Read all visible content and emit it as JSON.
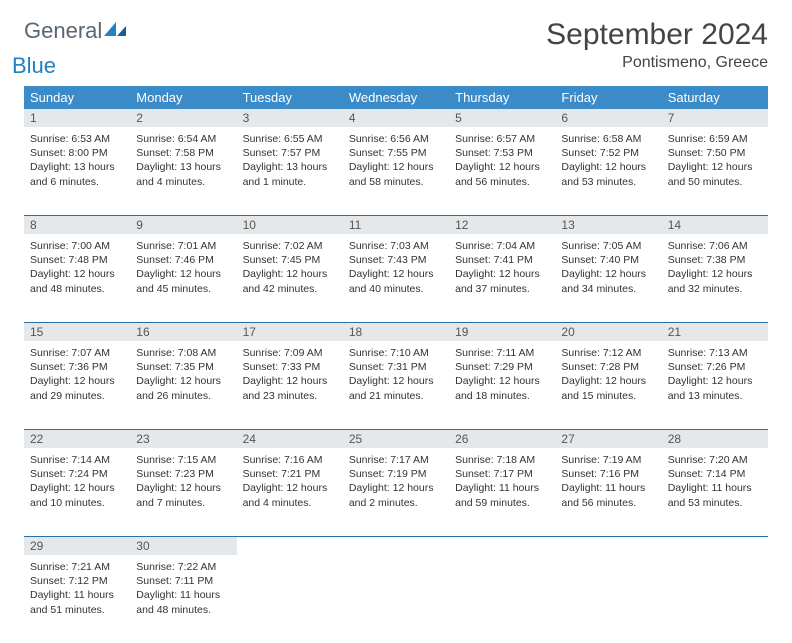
{
  "logo": {
    "word1": "General",
    "word2": "Blue",
    "text_color1": "#5a6670",
    "text_color2": "#2380c3"
  },
  "title": "September 2024",
  "location": "Pontismeno, Greece",
  "header_bg": "#3b8bc9",
  "daynum_bg": "#e5e8ea",
  "row_border_color": "#2a6fa8",
  "day_headers": [
    "Sunday",
    "Monday",
    "Tuesday",
    "Wednesday",
    "Thursday",
    "Friday",
    "Saturday"
  ],
  "labels": {
    "sunrise": "Sunrise:",
    "sunset": "Sunset:",
    "daylight": "Daylight:"
  },
  "weeks": [
    [
      {
        "n": "1",
        "sr": "6:53 AM",
        "ss": "8:00 PM",
        "dl": "13 hours and 6 minutes."
      },
      {
        "n": "2",
        "sr": "6:54 AM",
        "ss": "7:58 PM",
        "dl": "13 hours and 4 minutes."
      },
      {
        "n": "3",
        "sr": "6:55 AM",
        "ss": "7:57 PM",
        "dl": "13 hours and 1 minute."
      },
      {
        "n": "4",
        "sr": "6:56 AM",
        "ss": "7:55 PM",
        "dl": "12 hours and 58 minutes."
      },
      {
        "n": "5",
        "sr": "6:57 AM",
        "ss": "7:53 PM",
        "dl": "12 hours and 56 minutes."
      },
      {
        "n": "6",
        "sr": "6:58 AM",
        "ss": "7:52 PM",
        "dl": "12 hours and 53 minutes."
      },
      {
        "n": "7",
        "sr": "6:59 AM",
        "ss": "7:50 PM",
        "dl": "12 hours and 50 minutes."
      }
    ],
    [
      {
        "n": "8",
        "sr": "7:00 AM",
        "ss": "7:48 PM",
        "dl": "12 hours and 48 minutes."
      },
      {
        "n": "9",
        "sr": "7:01 AM",
        "ss": "7:46 PM",
        "dl": "12 hours and 45 minutes."
      },
      {
        "n": "10",
        "sr": "7:02 AM",
        "ss": "7:45 PM",
        "dl": "12 hours and 42 minutes."
      },
      {
        "n": "11",
        "sr": "7:03 AM",
        "ss": "7:43 PM",
        "dl": "12 hours and 40 minutes."
      },
      {
        "n": "12",
        "sr": "7:04 AM",
        "ss": "7:41 PM",
        "dl": "12 hours and 37 minutes."
      },
      {
        "n": "13",
        "sr": "7:05 AM",
        "ss": "7:40 PM",
        "dl": "12 hours and 34 minutes."
      },
      {
        "n": "14",
        "sr": "7:06 AM",
        "ss": "7:38 PM",
        "dl": "12 hours and 32 minutes."
      }
    ],
    [
      {
        "n": "15",
        "sr": "7:07 AM",
        "ss": "7:36 PM",
        "dl": "12 hours and 29 minutes."
      },
      {
        "n": "16",
        "sr": "7:08 AM",
        "ss": "7:35 PM",
        "dl": "12 hours and 26 minutes."
      },
      {
        "n": "17",
        "sr": "7:09 AM",
        "ss": "7:33 PM",
        "dl": "12 hours and 23 minutes."
      },
      {
        "n": "18",
        "sr": "7:10 AM",
        "ss": "7:31 PM",
        "dl": "12 hours and 21 minutes."
      },
      {
        "n": "19",
        "sr": "7:11 AM",
        "ss": "7:29 PM",
        "dl": "12 hours and 18 minutes."
      },
      {
        "n": "20",
        "sr": "7:12 AM",
        "ss": "7:28 PM",
        "dl": "12 hours and 15 minutes."
      },
      {
        "n": "21",
        "sr": "7:13 AM",
        "ss": "7:26 PM",
        "dl": "12 hours and 13 minutes."
      }
    ],
    [
      {
        "n": "22",
        "sr": "7:14 AM",
        "ss": "7:24 PM",
        "dl": "12 hours and 10 minutes."
      },
      {
        "n": "23",
        "sr": "7:15 AM",
        "ss": "7:23 PM",
        "dl": "12 hours and 7 minutes."
      },
      {
        "n": "24",
        "sr": "7:16 AM",
        "ss": "7:21 PM",
        "dl": "12 hours and 4 minutes."
      },
      {
        "n": "25",
        "sr": "7:17 AM",
        "ss": "7:19 PM",
        "dl": "12 hours and 2 minutes."
      },
      {
        "n": "26",
        "sr": "7:18 AM",
        "ss": "7:17 PM",
        "dl": "11 hours and 59 minutes."
      },
      {
        "n": "27",
        "sr": "7:19 AM",
        "ss": "7:16 PM",
        "dl": "11 hours and 56 minutes."
      },
      {
        "n": "28",
        "sr": "7:20 AM",
        "ss": "7:14 PM",
        "dl": "11 hours and 53 minutes."
      }
    ],
    [
      {
        "n": "29",
        "sr": "7:21 AM",
        "ss": "7:12 PM",
        "dl": "11 hours and 51 minutes."
      },
      {
        "n": "30",
        "sr": "7:22 AM",
        "ss": "7:11 PM",
        "dl": "11 hours and 48 minutes."
      },
      null,
      null,
      null,
      null,
      null
    ]
  ]
}
